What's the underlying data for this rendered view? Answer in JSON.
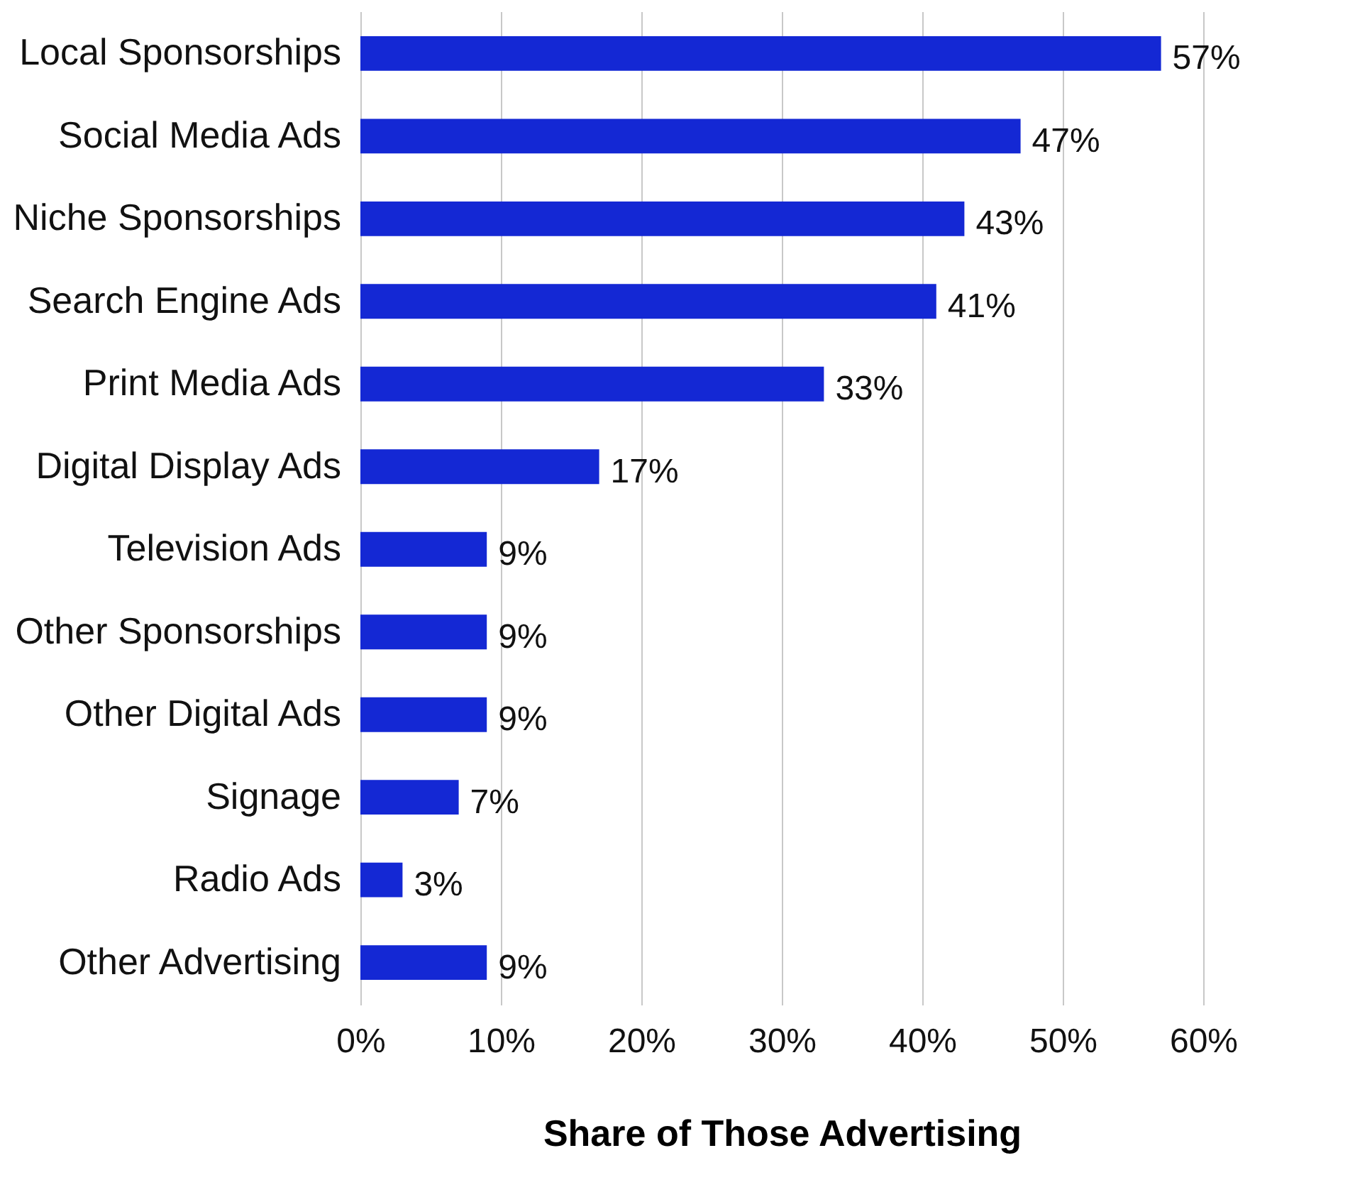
{
  "chart_data": {
    "type": "bar",
    "orientation": "horizontal",
    "xlabel": "Share of Those Advertising",
    "categories": [
      "Local Sponsorships",
      "Social Media Ads",
      "Niche Sponsorships",
      "Search Engine Ads",
      "Print Media Ads",
      "Digital Display Ads",
      "Television Ads",
      "Other Sponsorships",
      "Other Digital Ads",
      "Signage",
      "Radio Ads",
      "Other Advertising"
    ],
    "values": [
      57,
      47,
      43,
      41,
      33,
      17,
      9,
      9,
      9,
      7,
      3,
      9
    ],
    "value_labels": [
      "57%",
      "47%",
      "43%",
      "41%",
      "33%",
      "17%",
      "9%",
      "9%",
      "9%",
      "7%",
      "3%",
      "9%"
    ],
    "color": "#1428d4",
    "xlim": [
      0,
      60
    ],
    "xticks": [
      {
        "value": 0,
        "label": "0%"
      },
      {
        "value": 10,
        "label": "10%"
      },
      {
        "value": 20,
        "label": "20%"
      },
      {
        "value": 30,
        "label": "30%"
      },
      {
        "value": 40,
        "label": "40%"
      },
      {
        "value": 50,
        "label": "50%"
      },
      {
        "value": 60,
        "label": "60%"
      }
    ],
    "grid": "x"
  }
}
